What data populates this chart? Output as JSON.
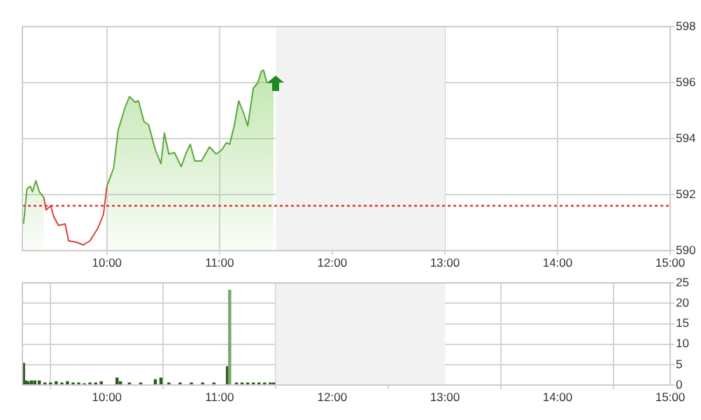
{
  "chart_data": [
    {
      "type": "line",
      "marker": "none",
      "grid": true,
      "x": [
        9.26,
        9.29,
        9.32,
        9.34,
        9.37,
        9.4,
        9.44,
        9.46,
        9.5,
        9.53,
        9.57,
        9.63,
        9.66,
        9.73,
        9.79,
        9.85,
        9.92,
        9.97,
        10.0,
        10.06,
        10.1,
        10.16,
        10.2,
        10.25,
        10.28,
        10.33,
        10.37,
        10.43,
        10.48,
        10.51,
        10.55,
        10.6,
        10.66,
        10.7,
        10.74,
        10.78,
        10.84,
        10.91,
        10.97,
        11.02,
        11.06,
        11.09,
        11.13,
        11.17,
        11.21,
        11.25,
        11.3,
        11.34,
        11.37,
        11.39,
        11.42,
        11.48
      ],
      "series": [
        {
          "type": "area",
          "color": "#5aa83c",
          "values": [
            590.95,
            592.2,
            592.3,
            592.1,
            592.5,
            592.1,
            591.9,
            null,
            null,
            null,
            null,
            null,
            null,
            null,
            null,
            null,
            null,
            null,
            592.3,
            592.95,
            594.3,
            595.1,
            595.5,
            595.3,
            595.35,
            594.6,
            594.5,
            593.6,
            593.1,
            594.2,
            593.45,
            593.5,
            593.0,
            593.45,
            593.8,
            593.2,
            593.2,
            593.7,
            593.45,
            593.6,
            593.85,
            593.8,
            594.45,
            595.35,
            594.95,
            594.45,
            595.8,
            596.0,
            596.4,
            596.45,
            596.0,
            596.0
          ]
        },
        {
          "color": "#d9413a",
          "values": [
            null,
            null,
            null,
            null,
            null,
            null,
            591.9,
            591.45,
            591.6,
            591.2,
            590.9,
            590.95,
            590.35,
            590.3,
            590.2,
            590.35,
            590.8,
            591.3,
            592.3,
            null,
            null,
            null,
            null,
            null,
            null,
            null,
            null,
            null,
            null,
            null,
            null,
            null,
            null,
            null,
            null,
            null,
            null,
            null,
            null,
            null,
            null,
            null,
            null,
            null,
            null,
            null,
            null,
            null,
            null,
            null,
            null,
            null
          ]
        }
      ],
      "xlim": [
        9.25,
        15
      ],
      "xticks": [
        {
          "value": 10,
          "label": "10:00"
        },
        {
          "value": 11,
          "label": "11:00"
        },
        {
          "value": 12,
          "label": "12:00"
        },
        {
          "value": 13,
          "label": "13:00"
        },
        {
          "value": 14,
          "label": "14:00"
        },
        {
          "value": 15,
          "label": "15:00"
        }
      ],
      "ylim": [
        590,
        598
      ],
      "yticks": [
        590,
        592,
        594,
        596,
        598
      ],
      "ref_lines": [
        {
          "axis": "y",
          "value": 591.6,
          "color": "#e03030",
          "line_style": "dotted"
        }
      ],
      "bands": [
        {
          "axis": "x",
          "from": 11.5,
          "to": 13,
          "color": "#f2f2f2"
        }
      ]
    },
    {
      "type": "bar",
      "grid": true,
      "x": [
        9.26,
        9.28,
        9.3,
        9.33,
        9.36,
        9.4,
        9.45,
        9.5,
        9.55,
        9.6,
        9.65,
        9.7,
        9.75,
        9.8,
        9.85,
        9.9,
        9.95,
        10.09,
        10.12,
        10.2,
        10.3,
        10.43,
        10.48,
        10.55,
        10.65,
        10.75,
        10.85,
        10.95,
        11.07,
        11.09,
        11.15,
        11.2,
        11.25,
        11.3,
        11.35,
        11.4,
        11.45,
        11.48
      ],
      "values": [
        5.3,
        1,
        0.8,
        1,
        1,
        1,
        0.5,
        0.5,
        0.8,
        0.5,
        0.8,
        0.5,
        0.5,
        0.3,
        0.5,
        0.5,
        0.8,
        1.7,
        0.8,
        0.5,
        0.5,
        1.3,
        1.7,
        0.5,
        0.5,
        0.5,
        0.5,
        0.5,
        4.5,
        23.2,
        0.5,
        0.5,
        0.5,
        0.5,
        0.5,
        0.5,
        0.5,
        0.5
      ],
      "colors": [
        "#2e5e1e",
        "#2e5e1e",
        "#2e5e1e",
        "#2e5e1e",
        "#2e5e1e",
        "#2e5e1e",
        "#2e5e1e",
        "#2e5e1e",
        "#2e5e1e",
        "#2e5e1e",
        "#2e5e1e",
        "#2e5e1e",
        "#2e5e1e",
        "#2e5e1e",
        "#2e5e1e",
        "#2e5e1e",
        "#2e5e1e",
        "#2e5e1e",
        "#2e5e1e",
        "#2e5e1e",
        "#2e5e1e",
        "#2e5e1e",
        "#2e5e1e",
        "#2e5e1e",
        "#2e5e1e",
        "#2e5e1e",
        "#2e5e1e",
        "#2e5e1e",
        "#2e5e1e",
        "#7aa86a",
        "#2e5e1e",
        "#2e5e1e",
        "#2e5e1e",
        "#2e5e1e",
        "#2e5e1e",
        "#2e5e1e",
        "#2e5e1e",
        "#2e5e1e"
      ],
      "xlim": [
        9.25,
        15
      ],
      "xticks": [
        {
          "value": 10,
          "label": "10:00"
        },
        {
          "value": 11,
          "label": "11:00"
        },
        {
          "value": 12,
          "label": "12:00"
        },
        {
          "value": 13,
          "label": "13:00"
        },
        {
          "value": 14,
          "label": "14:00"
        },
        {
          "value": 15,
          "label": "15:00"
        }
      ],
      "ylim": [
        0,
        25
      ],
      "yticks": [
        0,
        5,
        10,
        15,
        20,
        25
      ],
      "bands": [
        {
          "axis": "x",
          "from": 11.5,
          "to": 13,
          "color": "#f2f2f2"
        }
      ]
    }
  ]
}
